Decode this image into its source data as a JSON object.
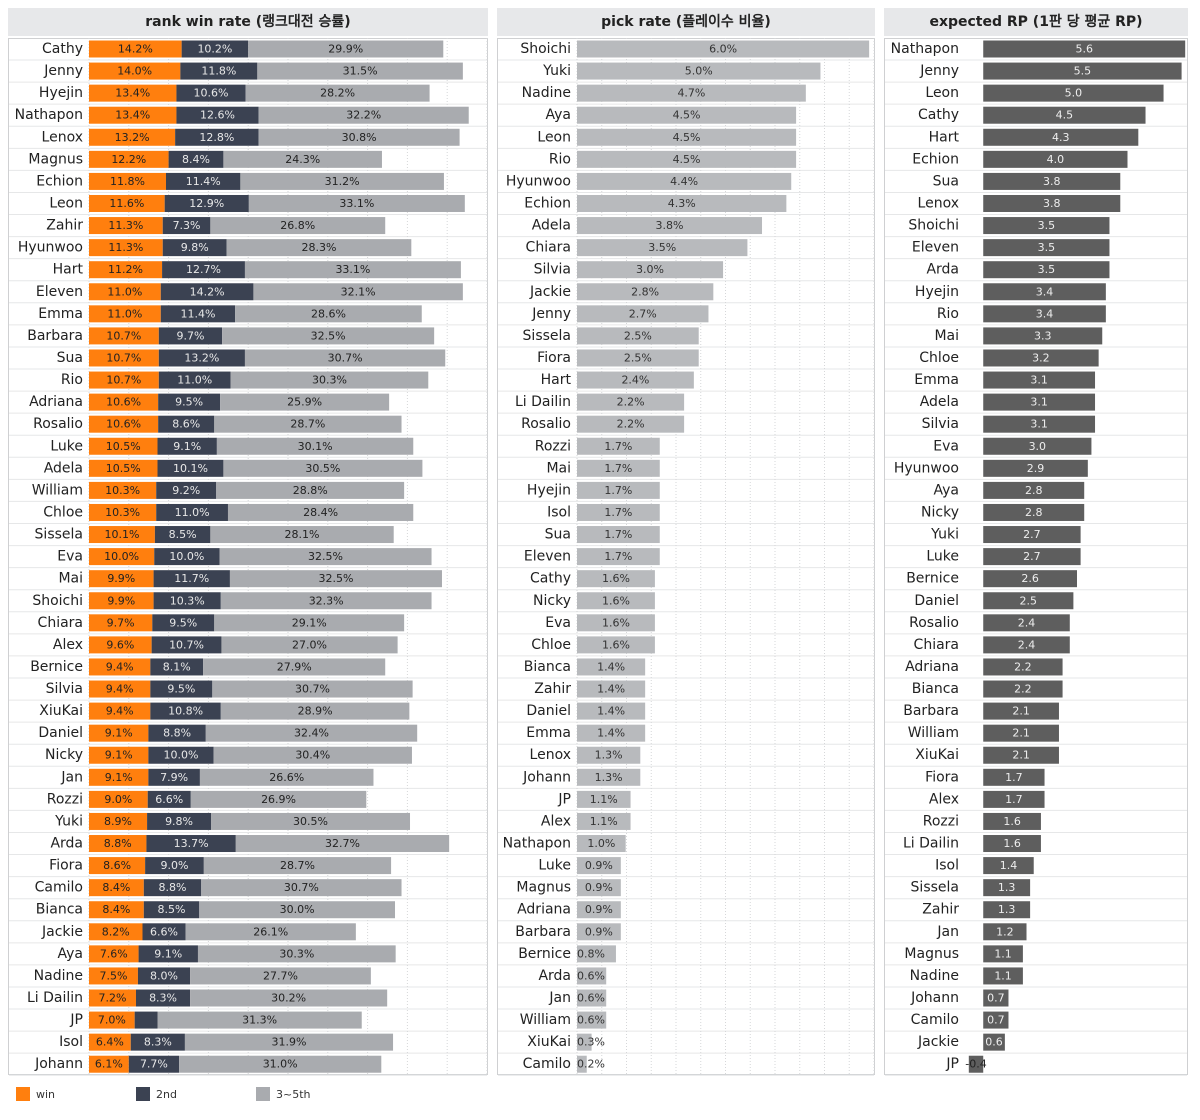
{
  "colors": {
    "win": "#ff7f0e",
    "second": "#3b4252",
    "third_fifth": "#a9abaf",
    "pick": "#b8babd",
    "rp": "#5e5e5e",
    "header_bg": "#e7e8ea"
  },
  "legend": [
    {
      "key": "win",
      "label": "win"
    },
    {
      "key": "second",
      "label": "2nd"
    },
    {
      "key": "third_fifth",
      "label": "3~5th"
    }
  ],
  "chart_data": [
    {
      "type": "bar",
      "stacked": true,
      "orientation": "horizontal",
      "title": "rank win rate (랭크대전 승률)",
      "series_names": [
        "win",
        "2nd",
        "3~5th"
      ],
      "categories": [
        "Cathy",
        "Jenny",
        "Hyejin",
        "Nathapon",
        "Lenox",
        "Magnus",
        "Echion",
        "Leon",
        "Zahir",
        "Hyunwoo",
        "Hart",
        "Eleven",
        "Emma",
        "Barbara",
        "Sua",
        "Rio",
        "Adriana",
        "Rosalio",
        "Luke",
        "Adela",
        "William",
        "Chloe",
        "Sissela",
        "Eva",
        "Mai",
        "Shoichi",
        "Chiara",
        "Alex",
        "Bernice",
        "Silvia",
        "XiuKai",
        "Daniel",
        "Nicky",
        "Jan",
        "Rozzi",
        "Yuki",
        "Arda",
        "Fiora",
        "Camilo",
        "Bianca",
        "Jackie",
        "Aya",
        "Nadine",
        "Li Dailin",
        "JP",
        "Isol",
        "Johann"
      ],
      "win": [
        14.2,
        14.0,
        13.4,
        13.4,
        13.2,
        12.2,
        11.8,
        11.6,
        11.3,
        11.3,
        11.2,
        11.0,
        11.0,
        10.7,
        10.7,
        10.7,
        10.6,
        10.6,
        10.5,
        10.5,
        10.3,
        10.3,
        10.1,
        10.0,
        9.9,
        9.9,
        9.7,
        9.6,
        9.4,
        9.4,
        9.4,
        9.1,
        9.1,
        9.1,
        9.0,
        8.9,
        8.8,
        8.6,
        8.4,
        8.4,
        8.2,
        7.6,
        7.5,
        7.2,
        7.0,
        6.4,
        6.1
      ],
      "win_labels": [
        "14.2%",
        "14.0%",
        "13.4%",
        "13.4%",
        "13.2%",
        "12.2%",
        "11.8%",
        "11.6%",
        "11.3%",
        "11.3%",
        "11.2%",
        "11.0%",
        "11.0%",
        "10.7%",
        "10.7%",
        "10.7%",
        "10.6%",
        "10.6%",
        "10.5%",
        "10.5%",
        "10.3%",
        "10.3%",
        "10.1%",
        "10.0%",
        "9.9%",
        "9.9%",
        "9.7%",
        "9.6%",
        "9.4%",
        "9.4%",
        "9.4%",
        "9.1%",
        "9.1%",
        "9.1%",
        "9.0%",
        "8.9%",
        "8.8%",
        "8.6%",
        "8.4%",
        "8.4%",
        "8.2%",
        "7.6%",
        "7.5%",
        "7.2%",
        "7.0%",
        "6.4%",
        "6.1%"
      ],
      "second": [
        10.2,
        11.8,
        10.6,
        12.6,
        12.8,
        8.4,
        11.4,
        12.9,
        7.3,
        9.8,
        12.7,
        14.2,
        11.4,
        9.7,
        13.2,
        11.0,
        9.5,
        8.6,
        9.1,
        10.1,
        9.2,
        11.0,
        8.5,
        10.0,
        11.7,
        10.3,
        9.5,
        10.7,
        8.1,
        9.5,
        10.8,
        8.8,
        10.0,
        7.9,
        6.6,
        9.8,
        13.7,
        9.0,
        8.8,
        8.5,
        6.6,
        9.1,
        8.0,
        8.3,
        3.5,
        8.3,
        7.7
      ],
      "second_labels": [
        "10.2%",
        "11.8%",
        "10.6%",
        "12.6%",
        "12.8%",
        "8.4%",
        "11.4%",
        "12.9%",
        "7.3%",
        "9.8%",
        "12.7%",
        "14.2%",
        "11.4%",
        "9.7%",
        "13.2%",
        "11.0%",
        "9.5%",
        "8.6%",
        "9.1%",
        "10.1%",
        "9.2%",
        "11.0%",
        "8.5%",
        "10.0%",
        "11.7%",
        "10.3%",
        "9.5%",
        "10.7%",
        "8.1%",
        "9.5%",
        "10.8%",
        "8.8%",
        "10.0%",
        "7.9%",
        "6.6%",
        "9.8%",
        "13.7%",
        "9.0%",
        "8.8%",
        "8.5%",
        "6.6%",
        "9.1%",
        "8.0%",
        "8.3%",
        "",
        "8.3%",
        "7.7%"
      ],
      "third_fifth": [
        29.9,
        31.5,
        28.2,
        32.2,
        30.8,
        24.3,
        31.2,
        33.1,
        26.8,
        28.3,
        33.1,
        32.1,
        28.6,
        32.5,
        30.7,
        30.3,
        25.9,
        28.7,
        30.1,
        30.5,
        28.8,
        28.4,
        28.1,
        32.5,
        32.5,
        32.3,
        29.1,
        27.0,
        27.9,
        30.7,
        28.9,
        32.4,
        30.4,
        26.6,
        26.9,
        30.5,
        32.7,
        28.7,
        30.7,
        30.0,
        26.1,
        30.3,
        27.7,
        30.2,
        31.3,
        31.9,
        31.0
      ],
      "third_fifth_labels": [
        "29.9%",
        "31.5%",
        "28.2%",
        "32.2%",
        "30.8%",
        "24.3%",
        "31.2%",
        "33.1%",
        "26.8%",
        "28.3%",
        "33.1%",
        "32.1%",
        "28.6%",
        "32.5%",
        "30.7%",
        "30.3%",
        "25.9%",
        "28.7%",
        "30.1%",
        "30.5%",
        "28.8%",
        "28.4%",
        "28.1%",
        "32.5%",
        "32.5%",
        "32.3%",
        "29.1%",
        "27.0%",
        "27.9%",
        "30.7%",
        "28.9%",
        "32.4%",
        "30.4%",
        "26.6%",
        "26.9%",
        "30.5%",
        "32.7%",
        "28.7%",
        "30.7%",
        "30.0%",
        "26.1%",
        "30.3%",
        "27.7%",
        "30.2%",
        "31.3%",
        "31.9%",
        "31.0%"
      ],
      "xlim": [
        0,
        61
      ]
    },
    {
      "type": "bar",
      "orientation": "horizontal",
      "title": "pick rate (플레이수 비율)",
      "categories": [
        "Shoichi",
        "Yuki",
        "Nadine",
        "Aya",
        "Leon",
        "Rio",
        "Hyunwoo",
        "Echion",
        "Adela",
        "Chiara",
        "Silvia",
        "Jackie",
        "Jenny",
        "Sissela",
        "Fiora",
        "Hart",
        "Li Dailin",
        "Rosalio",
        "Rozzi",
        "Mai",
        "Hyejin",
        "Isol",
        "Sua",
        "Eleven",
        "Cathy",
        "Nicky",
        "Eva",
        "Chloe",
        "Bianca",
        "Zahir",
        "Daniel",
        "Emma",
        "Lenox",
        "Johann",
        "JP",
        "Alex",
        "Nathapon",
        "Luke",
        "Magnus",
        "Adriana",
        "Barbara",
        "Bernice",
        "Arda",
        "Jan",
        "William",
        "XiuKai",
        "Camilo"
      ],
      "values": [
        6.0,
        5.0,
        4.7,
        4.5,
        4.5,
        4.5,
        4.4,
        4.3,
        3.8,
        3.5,
        3.0,
        2.8,
        2.7,
        2.5,
        2.5,
        2.4,
        2.2,
        2.2,
        1.7,
        1.7,
        1.7,
        1.7,
        1.7,
        1.7,
        1.6,
        1.6,
        1.6,
        1.6,
        1.4,
        1.4,
        1.4,
        1.4,
        1.3,
        1.3,
        1.1,
        1.1,
        1.0,
        0.9,
        0.9,
        0.9,
        0.9,
        0.8,
        0.6,
        0.6,
        0.6,
        0.3,
        0.2
      ],
      "labels": [
        "6.0%",
        "5.0%",
        "4.7%",
        "4.5%",
        "4.5%",
        "4.5%",
        "4.4%",
        "4.3%",
        "3.8%",
        "3.5%",
        "3.0%",
        "2.8%",
        "2.7%",
        "2.5%",
        "2.5%",
        "2.4%",
        "2.2%",
        "2.2%",
        "1.7%",
        "1.7%",
        "1.7%",
        "1.7%",
        "1.7%",
        "1.7%",
        "1.6%",
        "1.6%",
        "1.6%",
        "1.6%",
        "1.4%",
        "1.4%",
        "1.4%",
        "1.4%",
        "1.3%",
        "1.3%",
        "1.1%",
        "1.1%",
        "1.0%",
        "0.9%",
        "0.9%",
        "0.9%",
        "0.9%",
        "0.8%",
        "0.6%",
        "0.6%",
        "0.6%",
        "0.3%",
        "0.2%"
      ],
      "xlim": [
        0,
        6.1
      ]
    },
    {
      "type": "bar",
      "orientation": "horizontal",
      "title": "expected RP (1판 당 평균 RP)",
      "categories": [
        "Nathapon",
        "Jenny",
        "Leon",
        "Cathy",
        "Hart",
        "Echion",
        "Sua",
        "Lenox",
        "Shoichi",
        "Eleven",
        "Arda",
        "Hyejin",
        "Rio",
        "Mai",
        "Chloe",
        "Emma",
        "Adela",
        "Silvia",
        "Eva",
        "Hyunwoo",
        "Aya",
        "Nicky",
        "Yuki",
        "Luke",
        "Bernice",
        "Daniel",
        "Rosalio",
        "Chiara",
        "Adriana",
        "Bianca",
        "Barbara",
        "William",
        "XiuKai",
        "Fiora",
        "Alex",
        "Rozzi",
        "Li Dailin",
        "Isol",
        "Sissela",
        "Zahir",
        "Jan",
        "Magnus",
        "Nadine",
        "Johann",
        "Camilo",
        "Jackie",
        "JP"
      ],
      "values": [
        5.6,
        5.5,
        5.0,
        4.5,
        4.3,
        4.0,
        3.8,
        3.8,
        3.5,
        3.5,
        3.5,
        3.4,
        3.4,
        3.3,
        3.2,
        3.1,
        3.1,
        3.1,
        3.0,
        2.9,
        2.8,
        2.8,
        2.7,
        2.7,
        2.6,
        2.5,
        2.4,
        2.4,
        2.2,
        2.2,
        2.1,
        2.1,
        2.1,
        1.7,
        1.7,
        1.6,
        1.6,
        1.4,
        1.3,
        1.3,
        1.2,
        1.1,
        1.1,
        0.7,
        0.7,
        0.6,
        -0.4
      ],
      "labels": [
        "5.6",
        "5.5",
        "5.0",
        "4.5",
        "4.3",
        "4.0",
        "3.8",
        "3.8",
        "3.5",
        "3.5",
        "3.5",
        "3.4",
        "3.4",
        "3.3",
        "3.2",
        "3.1",
        "3.1",
        "3.1",
        "3.0",
        "2.9",
        "2.8",
        "2.8",
        "2.7",
        "2.7",
        "2.6",
        "2.5",
        "2.4",
        "2.4",
        "2.2",
        "2.2",
        "2.1",
        "2.1",
        "2.1",
        "1.7",
        "1.7",
        "1.6",
        "1.6",
        "1.4",
        "1.3",
        "1.3",
        "1.2",
        "1.1",
        "1.1",
        "0.7",
        "0.7",
        "0.6",
        "-0.4"
      ],
      "xlim": [
        -0.45,
        5.65
      ]
    }
  ]
}
